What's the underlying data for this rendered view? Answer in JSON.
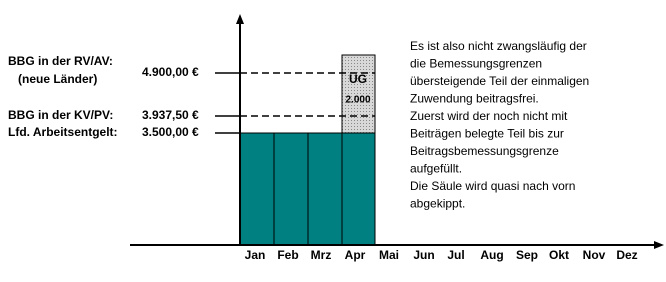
{
  "levels": [
    {
      "label": [
        "BBG in der RV/AV:",
        "(neue Länder)"
      ],
      "amount": "4.900,00 €"
    },
    {
      "label": [
        "BBG in der KV/PV:"
      ],
      "amount": "3.937,50 €"
    },
    {
      "label": [
        "Lfd. Arbeitsentgelt:"
      ],
      "amount": "3.500,00 €"
    }
  ],
  "months": [
    "Jan",
    "Feb",
    "Mrz",
    "Apr",
    "Mai",
    "Jun",
    "Jul",
    "Aug",
    "Sep",
    "Okt",
    "Nov",
    "Dez"
  ],
  "box": {
    "title": "UG",
    "value": "2.000"
  },
  "note": [
    "Es ist also nicht zwangsläufig der",
    "die Bemessungsgrenzen",
    "übersteigende Teil der einmaligen",
    "Zuwendung beitragsfrei.",
    "Zuerst wird der noch nicht mit",
    "Beiträgen belegte Teil bis zur",
    "Beitragsbemessungsgrenze",
    "aufgefüllt.",
    "Die Säule wird quasi nach vorn",
    "abgekippt."
  ]
}
